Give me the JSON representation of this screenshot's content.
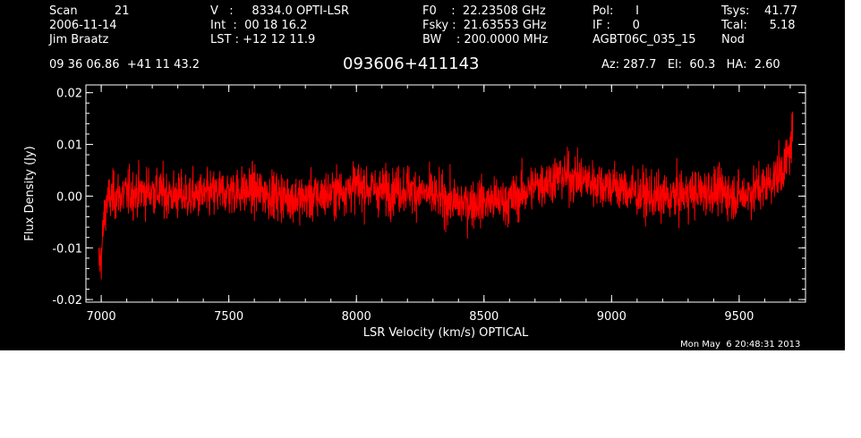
{
  "header": {
    "col1": {
      "r1": "Scan          21",
      "r2": "2006-11-14",
      "r3": "Jim Braatz"
    },
    "col2": {
      "r1": "V   :     8334.0 OPTI-LSR",
      "r2": "Int  :  00 18 16.2",
      "r3": "LST : +12 12 11.9"
    },
    "col3": {
      "r1": "F0    :  22.23508 GHz",
      "r2": "Fsky :  21.63553 GHz",
      "r3": "BW    : 200.0000 MHz"
    },
    "col4": {
      "r1": "Pol:      I",
      "r2": "IF :      0",
      "r3": "AGBT06C_035_15"
    },
    "col5": {
      "r1": "Tsys:    41.77",
      "r2": "Tcal:      5.18",
      "r3": "Nod"
    },
    "coords": "09 36 06.86  +41 11 43.2",
    "source": "093606+411143",
    "azel": "Az: 287.7   El:  60.3   HA:  2.60",
    "timestamp": "Mon May  6 20:48:31 2013"
  },
  "colors": {
    "background": "#000000",
    "axes": "#ffffff",
    "trace": "#ff0000"
  },
  "chart_data": {
    "type": "line",
    "title": "093606+411143",
    "xlabel": "LSR Velocity (km/s) OPTICAL",
    "ylabel": "Flux Density (Jy)",
    "xlim": [
      6940,
      9760
    ],
    "ylim": [
      -0.0205,
      0.0215
    ],
    "xticks": [
      7000,
      7500,
      8000,
      8500,
      9000,
      9500
    ],
    "xtick_labels": [
      "7000",
      "7500",
      "8000",
      "8500",
      "9000",
      "9500"
    ],
    "yticks": [
      -0.02,
      -0.01,
      0.0,
      0.01,
      0.02
    ],
    "ytick_labels": [
      "-0.02",
      "-0.01",
      "0.00",
      "0.01",
      "0.02"
    ],
    "grid": false,
    "series": [
      {
        "color": "#ff0000",
        "noise_rms": 0.0038,
        "x": [
          6990,
          7000,
          7010,
          7020,
          7050,
          7100,
          7200,
          7300,
          7400,
          7500,
          7600,
          7700,
          7800,
          7900,
          8000,
          8100,
          8200,
          8300,
          8400,
          8500,
          8600,
          8700,
          8800,
          8900,
          9000,
          9100,
          9200,
          9300,
          9400,
          9500,
          9600,
          9650,
          9680,
          9700,
          9710
        ],
        "y": [
          -0.013,
          -0.012,
          -0.005,
          -0.001,
          0.0,
          0.0005,
          0.001,
          0.0,
          0.0,
          0.001,
          0.001,
          0.0,
          -0.0005,
          0.0005,
          0.002,
          0.001,
          0.0015,
          0.0,
          -0.0015,
          -0.001,
          -0.001,
          0.002,
          0.004,
          0.003,
          0.002,
          0.0005,
          -0.0005,
          0.0005,
          0.001,
          0.0,
          0.002,
          0.004,
          0.006,
          0.009,
          0.013
        ]
      }
    ]
  }
}
